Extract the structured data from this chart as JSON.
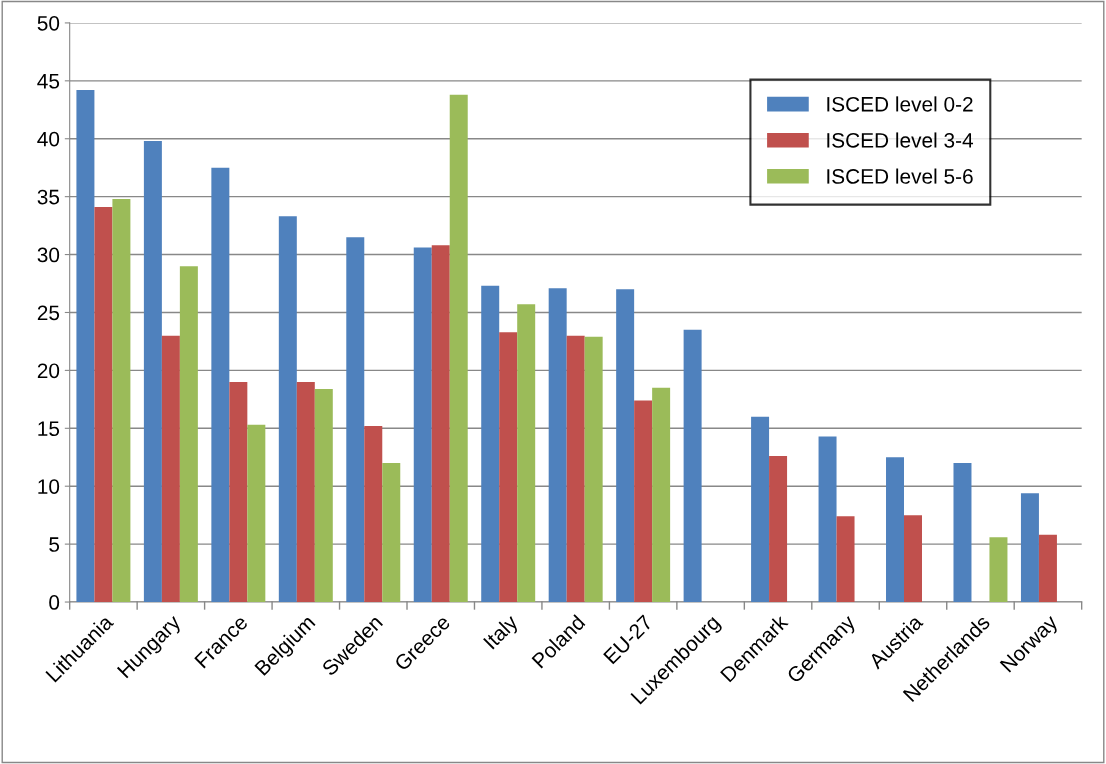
{
  "chart_data": {
    "type": "bar",
    "categories": [
      "Lithuania",
      "Hungary",
      "France",
      "Belgium",
      "Sweden",
      "Greece",
      "Italy",
      "Poland",
      "EU-27",
      "Luxembourg",
      "Denmark",
      "Germany",
      "Austria",
      "Netherlands",
      "Norway"
    ],
    "series": [
      {
        "name": "ISCED level 0-2",
        "color": "#4f81bd",
        "values": [
          44.2,
          39.8,
          37.5,
          33.3,
          31.5,
          30.6,
          27.3,
          27.1,
          27.0,
          23.5,
          16.0,
          14.3,
          12.5,
          12.0,
          9.4
        ]
      },
      {
        "name": "ISCED level 3-4",
        "color": "#c0504d",
        "values": [
          34.1,
          23.0,
          19.0,
          19.0,
          15.2,
          30.8,
          23.3,
          23.0,
          17.4,
          null,
          12.6,
          7.4,
          7.5,
          null,
          5.8
        ]
      },
      {
        "name": "ISCED level 5-6",
        "color": "#9bbb59",
        "values": [
          34.8,
          29.0,
          15.3,
          18.4,
          12.0,
          43.8,
          25.7,
          22.9,
          18.5,
          null,
          null,
          null,
          null,
          5.6,
          null
        ]
      }
    ],
    "ylim": [
      0,
      50
    ],
    "yticks": [
      0,
      5,
      10,
      15,
      20,
      25,
      30,
      35,
      40,
      45,
      50
    ],
    "grid": "y",
    "legend": "top right"
  }
}
